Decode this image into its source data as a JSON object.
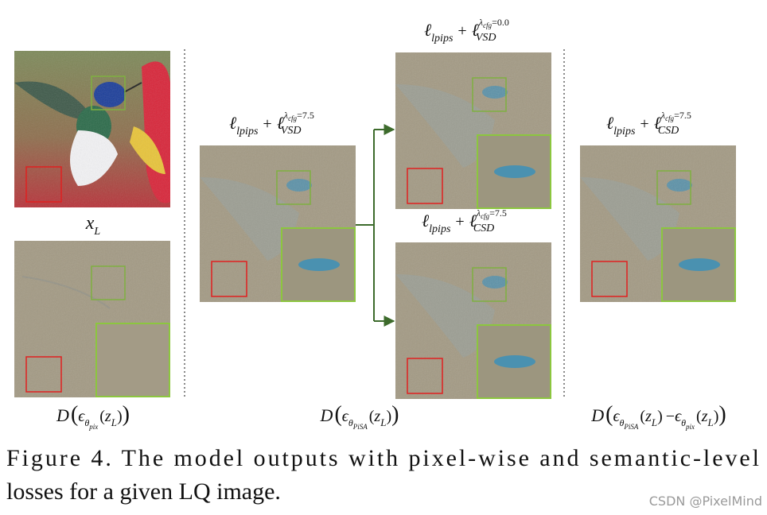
{
  "labels": {
    "xl": [
      "x",
      "L"
    ],
    "vsd75": [
      "ℓ",
      "lpips",
      "+",
      "ℓ",
      "λ",
      "cfg",
      "=7.5",
      "VSD"
    ],
    "vsd00": [
      "ℓ",
      "lpips",
      "+",
      "ℓ",
      "λ",
      "cfg",
      "=0.0",
      "VSD"
    ],
    "csd75_mid": [
      "ℓ",
      "lpips",
      "+",
      "ℓ",
      "λ",
      "cfg",
      "=7.5",
      "CSD"
    ],
    "csd75_right": [
      "ℓ",
      "lpips",
      "+",
      "ℓ",
      "λ",
      "cfg",
      "=7.5",
      "CSD"
    ],
    "d_pix": [
      "D",
      "(",
      "ϵ",
      "θ",
      "pix",
      "(",
      "z",
      "L",
      ")",
      ")"
    ],
    "d_pisa": [
      "D",
      "(",
      "ϵ",
      "θ",
      "PiSA",
      "(",
      "z",
      "L",
      ")",
      ")"
    ],
    "d_diff": [
      "D",
      "(",
      "ϵ",
      "θ",
      "PiSA",
      "(",
      "z",
      "L",
      ")",
      "−",
      "ϵ",
      "θ",
      "pix",
      "(",
      "z",
      "L",
      ")",
      ")"
    ]
  },
  "caption": [
    "Figure 4.  The model outputs with pixel-wise and semantic-level",
    "losses for a given LQ image."
  ],
  "watermark": "CSDN @PixelMind"
}
